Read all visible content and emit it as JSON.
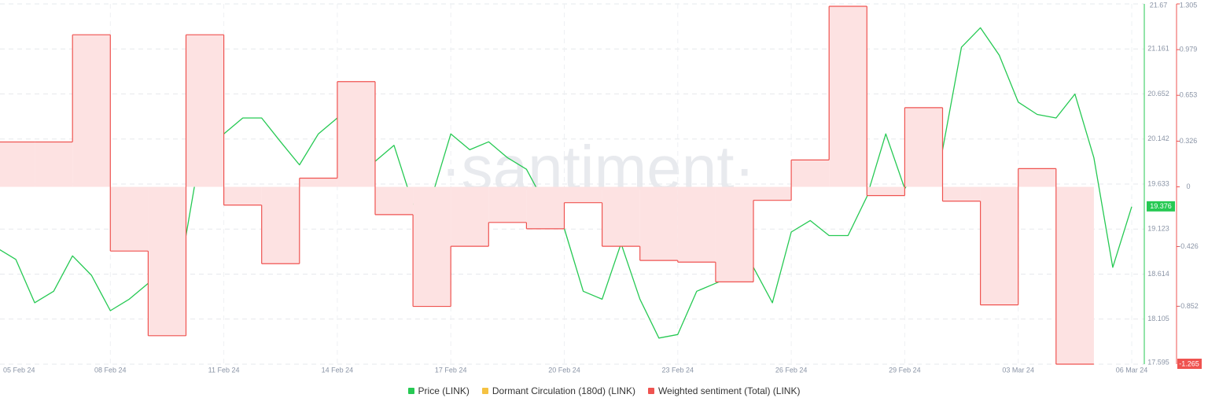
{
  "chart_data": {
    "type": "line",
    "watermark": "·santiment·",
    "xlim": [
      "2024-02-05",
      "2024-03-06"
    ],
    "xticks": [
      {
        "value": "2024-02-05",
        "label": "05 Feb 24"
      },
      {
        "value": "2024-02-08",
        "label": "08 Feb 24"
      },
      {
        "value": "2024-02-11",
        "label": "11 Feb 24"
      },
      {
        "value": "2024-02-14",
        "label": "14 Feb 24"
      },
      {
        "value": "2024-02-17",
        "label": "17 Feb 24"
      },
      {
        "value": "2024-02-20",
        "label": "20 Feb 24"
      },
      {
        "value": "2024-02-23",
        "label": "23 Feb 24"
      },
      {
        "value": "2024-02-26",
        "label": "26 Feb 24"
      },
      {
        "value": "2024-02-29",
        "label": "29 Feb 24"
      },
      {
        "value": "2024-03-03",
        "label": "03 Mar 24"
      },
      {
        "value": "2024-03-06",
        "label": "06 Mar 24"
      }
    ],
    "ylim": [
      17.595,
      21.67
    ],
    "yticks": [
      21.67,
      21.161,
      20.652,
      20.142,
      19.633,
      19.123,
      18.614,
      18.105,
      17.595
    ],
    "y2lim": [
      -1.265,
      1.305
    ],
    "y2ticks": [
      1.305,
      0.979,
      0.653,
      0.326,
      0,
      -0.426,
      -0.852
    ],
    "grid": true,
    "series": [
      {
        "name": "Price (LINK)",
        "color": "#26c953",
        "values": [
          18.91,
          18.78,
          18.29,
          18.42,
          18.82,
          18.6,
          18.2,
          18.33,
          18.51,
          18.2,
          19.05,
          20.29,
          20.2,
          20.38,
          20.38,
          20.11,
          19.85,
          20.2,
          20.38,
          20.07,
          19.89,
          20.07,
          19.4,
          19.49,
          20.2,
          20.02,
          20.11,
          19.93,
          19.8,
          19.4,
          19.13,
          18.42,
          18.33,
          18.96,
          18.33,
          17.89,
          17.93,
          18.42,
          18.51,
          18.6,
          18.69,
          18.29,
          19.09,
          19.22,
          19.05,
          19.05,
          19.49,
          20.2,
          19.58,
          19.93,
          20.02,
          21.18,
          21.4,
          21.09,
          20.56,
          20.42,
          20.38,
          20.65,
          19.93,
          18.69,
          19.376
        ]
      },
      {
        "name": "Dormant Circulation (180d) (LINK)",
        "color": "#f5c242"
      },
      {
        "name": "Weighted sentiment (Total) (LINK)",
        "color": "#ef5350",
        "axis": "y2",
        "fill": "#fde2e2",
        "x": [
          "2024-02-05",
          "2024-02-06",
          "2024-02-07",
          "2024-02-08",
          "2024-02-09",
          "2024-02-10",
          "2024-02-11",
          "2024-02-12",
          "2024-02-13",
          "2024-02-14",
          "2024-02-15",
          "2024-02-16",
          "2024-02-17",
          "2024-02-18",
          "2024-02-19",
          "2024-02-20",
          "2024-02-21",
          "2024-02-22",
          "2024-02-23",
          "2024-02-24",
          "2024-02-25",
          "2024-02-26",
          "2024-02-27",
          "2024-02-28",
          "2024-02-29",
          "2024-03-01",
          "2024-03-02",
          "2024-03-03",
          "2024-03-04"
        ],
        "values": [
          0.32,
          0.32,
          1.085,
          -0.458,
          -1.062,
          1.085,
          -0.13,
          -0.548,
          0.062,
          0.751,
          -0.198,
          -0.853,
          -0.424,
          -0.254,
          -0.299,
          -0.113,
          -0.424,
          -0.525,
          -0.537,
          -0.678,
          -0.096,
          0.192,
          1.288,
          -0.062,
          0.565,
          -0.102,
          -0.842,
          0.13,
          -1.265
        ]
      }
    ]
  }
}
